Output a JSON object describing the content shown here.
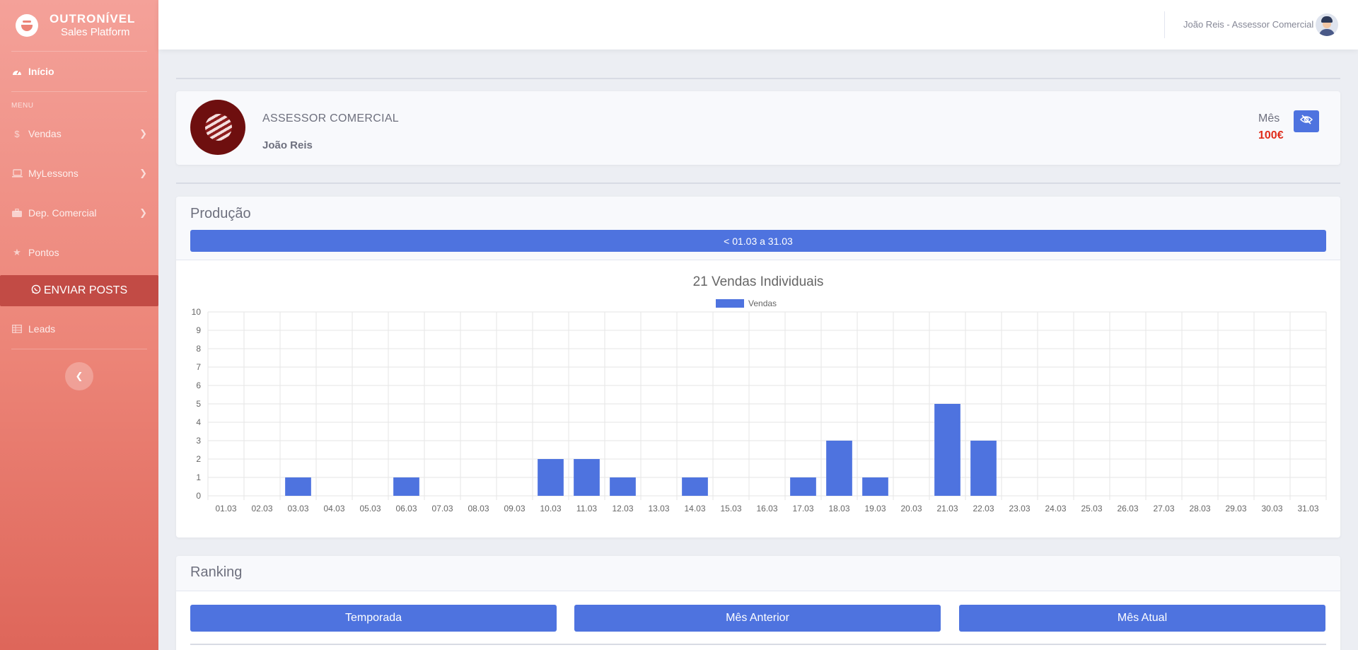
{
  "sidebar": {
    "brand_title": "OUTRONÍVEL",
    "brand_subtitle": "Sales Platform",
    "home": "Início",
    "section": "MENU",
    "items": [
      {
        "label": "Vendas",
        "icon": "dollar-icon"
      },
      {
        "label": "MyLessons",
        "icon": "laptop-icon"
      },
      {
        "label": "Dep. Comercial",
        "icon": "briefcase-icon"
      },
      {
        "label": "Pontos",
        "icon": "star-icon"
      }
    ],
    "enviar_posts": "ENVIAR POSTS",
    "leads": "Leads"
  },
  "topbar": {
    "user": "João Reis - Assessor Comercial"
  },
  "profile": {
    "role": "ASSESSOR COMERCIAL",
    "name": "João Reis",
    "mes_label": "Mês",
    "mes_value": "100€"
  },
  "producao": {
    "title": "Produção",
    "period": "< 01.03 a 31.03"
  },
  "chart_data": {
    "type": "bar",
    "title": "21 Vendas Individuais",
    "legend": [
      "Vendas"
    ],
    "legend_position": "top",
    "color": "#4e73df",
    "grid": true,
    "ylim": [
      0,
      10
    ],
    "y_ticks": [
      "0",
      "1",
      "2",
      "3",
      "4",
      "5",
      "6",
      "7",
      "8",
      "9",
      "10"
    ],
    "categories": [
      "01.03",
      "02.03",
      "03.03",
      "04.03",
      "05.03",
      "06.03",
      "07.03",
      "08.03",
      "09.03",
      "10.03",
      "11.03",
      "12.03",
      "13.03",
      "14.03",
      "15.03",
      "16.03",
      "17.03",
      "18.03",
      "19.03",
      "20.03",
      "21.03",
      "22.03",
      "23.03",
      "24.03",
      "25.03",
      "26.03",
      "27.03",
      "28.03",
      "29.03",
      "30.03",
      "31.03"
    ],
    "series": [
      {
        "name": "Vendas",
        "values": [
          0,
          0,
          1,
          0,
          0,
          1,
          0,
          0,
          0,
          2,
          2,
          1,
          0,
          1,
          0,
          0,
          1,
          3,
          1,
          0,
          5,
          3,
          0,
          0,
          0,
          0,
          0,
          0,
          0,
          0,
          0
        ]
      }
    ]
  },
  "ranking": {
    "title": "Ranking",
    "buttons": [
      "Temporada",
      "Mês Anterior",
      "Mês Atual"
    ]
  }
}
